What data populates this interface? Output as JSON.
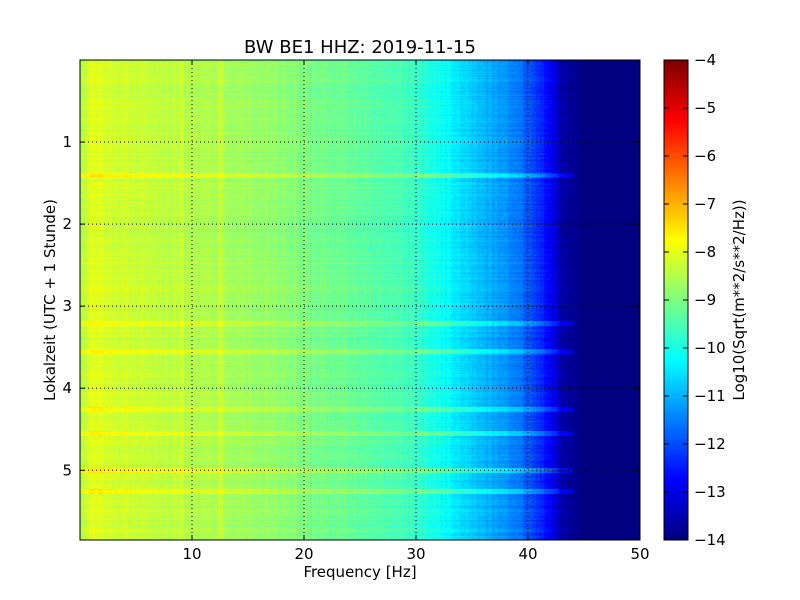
{
  "chart_data": {
    "type": "heatmap",
    "title": "BW BE1 HHZ: 2019-11-15",
    "xlabel": "Frequency [Hz]",
    "ylabel": "Lokalzeit (UTC + 1 Stunde)",
    "xlim": [
      0,
      50
    ],
    "ylim": [
      5.85,
      0
    ],
    "x_ticks": [
      10,
      20,
      30,
      40,
      50
    ],
    "y_ticks": [
      1,
      2,
      3,
      4,
      5
    ],
    "grid": true,
    "colormap": "jet",
    "colorbar": {
      "label": "Log10(Sqrt(m**2/s**2/Hz))",
      "range": [
        -14,
        -4
      ],
      "ticks": [
        -4,
        -5,
        -6,
        -7,
        -8,
        -9,
        -10,
        -11,
        -12,
        -13,
        -14
      ]
    },
    "psd_profile": {
      "frequency_hz": [
        0,
        1,
        3,
        5,
        10,
        15,
        20,
        25,
        30,
        33,
        35,
        38,
        40,
        42,
        43,
        45,
        50
      ],
      "log10_amplitude": [
        -8.6,
        -8.0,
        -8.2,
        -8.3,
        -8.5,
        -8.7,
        -9.0,
        -9.3,
        -9.7,
        -10.3,
        -10.8,
        -11.3,
        -11.9,
        -12.8,
        -13.6,
        -14,
        -14
      ]
    },
    "banded_rows_hours": [
      1.4,
      3.2,
      3.55,
      4.25,
      4.55,
      5.0,
      5.25
    ]
  }
}
